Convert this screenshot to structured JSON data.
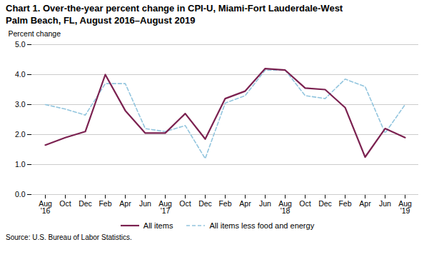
{
  "chart_data": {
    "type": "line",
    "title": "Chart 1. Over-the-year percent change in CPI-U, Miami-Fort Lauderdale-West\nPalm Beach, FL, August 2016–August 2019",
    "ylabel": "Percent change",
    "caption": "Source: U.S. Bureau of Labor Statistics.",
    "categories": [
      "Aug\n'16",
      "Oct",
      "Dec",
      "Feb",
      "Apr",
      "Jun",
      "Aug\n'17",
      "Oct",
      "Dec",
      "Feb",
      "Apr",
      "Jun",
      "Aug\n'18",
      "Oct",
      "Dec",
      "Feb",
      "Apr",
      "Jun",
      "Aug\n'19"
    ],
    "series": [
      {
        "name": "All items",
        "color": "#7b2150",
        "line_style": "solid",
        "values": [
          1.65,
          1.9,
          2.1,
          4.0,
          2.8,
          2.05,
          2.05,
          2.7,
          1.85,
          3.2,
          3.45,
          4.2,
          4.15,
          3.55,
          3.5,
          2.9,
          1.25,
          2.2,
          1.9
        ]
      },
      {
        "name": "All items less food and energy",
        "color": "#92c5de",
        "line_style": "dashed",
        "values": [
          3.0,
          2.85,
          2.65,
          3.7,
          3.7,
          2.2,
          2.1,
          2.3,
          1.2,
          3.05,
          3.3,
          4.15,
          4.15,
          3.3,
          3.2,
          3.85,
          3.6,
          2.05,
          3.0
        ]
      }
    ],
    "ylim": [
      0.0,
      5.0
    ],
    "yticks": [
      {
        "value": 0.0,
        "label": "0.0"
      },
      {
        "value": 1.0,
        "label": "1.0"
      },
      {
        "value": 2.0,
        "label": "2.0"
      },
      {
        "value": 3.0,
        "label": "3.0"
      },
      {
        "value": 4.0,
        "label": "4.0"
      },
      {
        "value": 5.0,
        "label": "5.0"
      }
    ],
    "grid": true,
    "legend": "bottom"
  }
}
